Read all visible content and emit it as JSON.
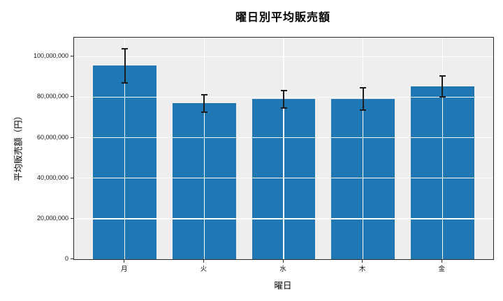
{
  "chart_data": {
    "type": "bar",
    "title": "曜日別平均販売額",
    "xlabel": "曜日",
    "ylabel": "平均販売額（円）",
    "categories": [
      "月",
      "火",
      "水",
      "木",
      "金"
    ],
    "values": [
      95500000,
      77000000,
      79000000,
      79000000,
      85300000
    ],
    "errors": [
      8500000,
      4300000,
      4400000,
      5500000,
      5300000
    ],
    "yticks": {
      "values": [
        0,
        20000000,
        40000000,
        60000000,
        80000000,
        100000000
      ],
      "labels": [
        "0",
        "20,000,000",
        "40,000,000",
        "60,000,000",
        "80,000,000",
        "100,000,000"
      ]
    },
    "ylim": [
      0,
      109400000
    ],
    "bar_width_fraction": 0.8,
    "grid": true,
    "grid_above_bars": true,
    "legend": false,
    "colors": {
      "bar": "#1f77b4",
      "plot_background": "#eeeeee",
      "figure_background": "#ffffff",
      "gridline": "#ffffff",
      "spine": "#2a2a2a",
      "error_bar": "#1c1c1c",
      "text": "#000000"
    }
  }
}
